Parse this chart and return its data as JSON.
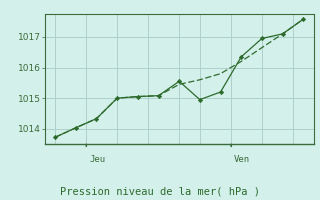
{
  "background_color": "#d4f0eb",
  "line_color": "#2d6b2d",
  "grid_color": "#aecfca",
  "axis_color": "#3a6b3a",
  "tick_color": "#3a6b3a",
  "xlabel": "Pression niveau de la mer( hPa )",
  "xlabel_color": "#2d6b2d",
  "ylabel_ticks": [
    1014,
    1015,
    1016,
    1017
  ],
  "ylim": [
    1013.5,
    1017.75
  ],
  "xlim": [
    -0.5,
    12.5
  ],
  "smooth_x": [
    0,
    1,
    2,
    3,
    4,
    5,
    6,
    7,
    8,
    9,
    10,
    11,
    12
  ],
  "smooth_y": [
    1013.72,
    1014.03,
    1014.33,
    1015.0,
    1015.05,
    1015.08,
    1015.45,
    1015.6,
    1015.8,
    1016.2,
    1016.65,
    1017.1,
    1017.58
  ],
  "jagged_x": [
    0,
    1,
    2,
    3,
    4,
    5,
    6,
    7,
    8,
    9,
    10,
    11,
    12
  ],
  "jagged_y": [
    1013.72,
    1014.03,
    1014.33,
    1015.0,
    1015.05,
    1015.08,
    1015.55,
    1014.95,
    1015.2,
    1016.35,
    1016.95,
    1017.1,
    1017.58
  ],
  "jeu_x": 1.5,
  "ven_x": 8.5,
  "xtick_positions": [
    0,
    1.5,
    3,
    4.5,
    6,
    7,
    8.5,
    10,
    11.5
  ],
  "fontsize_ticks": 6.5,
  "fontsize_xlabel": 7.5,
  "fontsize_daylabel": 6.5
}
